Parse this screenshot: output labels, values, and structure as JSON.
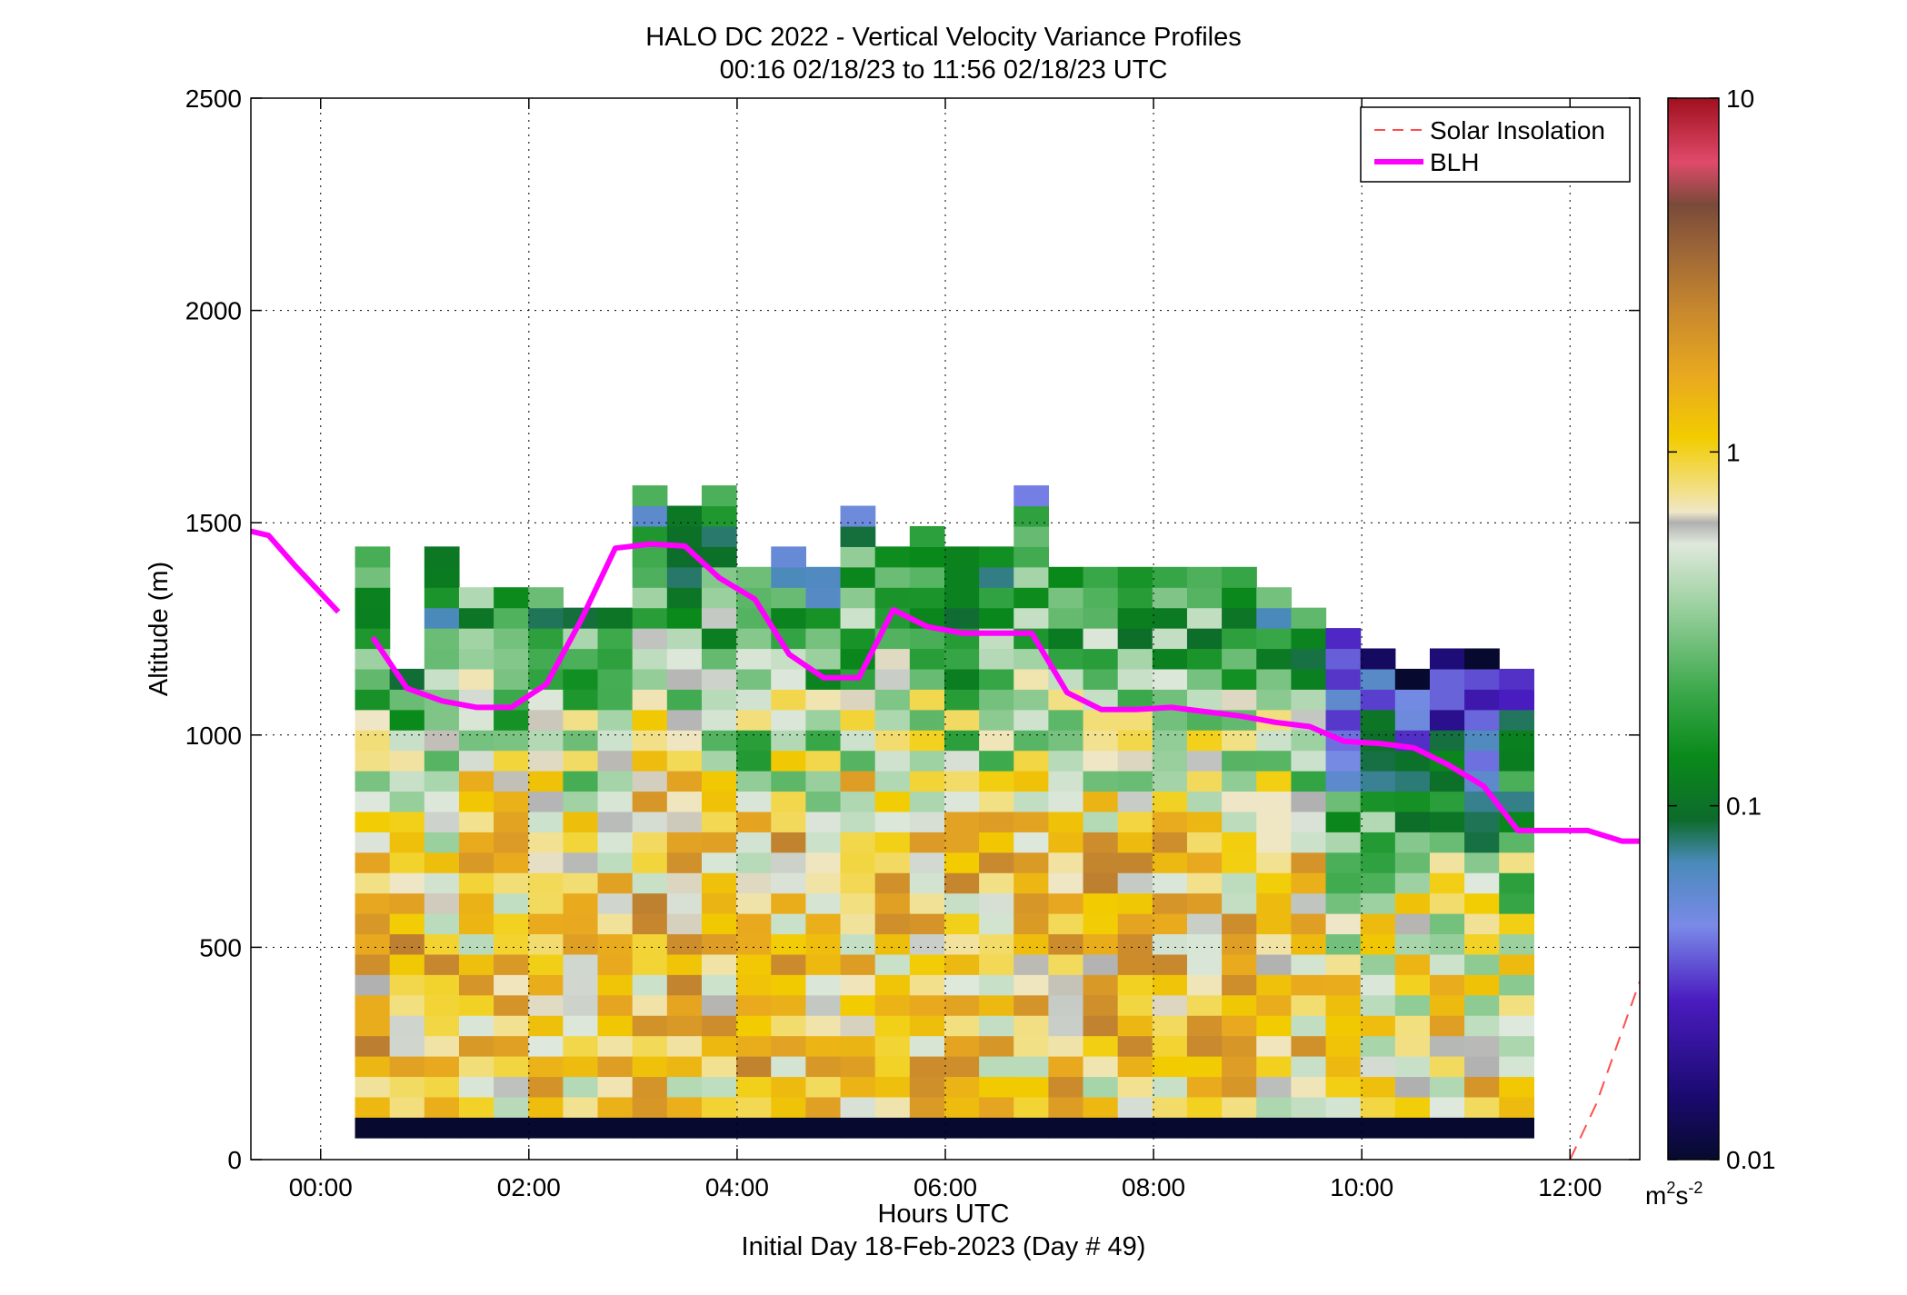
{
  "chart_data": {
    "type": "heatmap",
    "title": "HALO DC 2022 - Vertical Velocity Variance Profiles",
    "subtitle": "00:16 02/18/23 to 11:56 02/18/23  UTC",
    "xlabel": "Hours UTC",
    "xlabel2": "Initial Day 18-Feb-2023 (Day # 49)",
    "ylabel": "Altitude (m)",
    "xlim": [
      -0.67,
      12.67
    ],
    "ylim": [
      0,
      2500
    ],
    "x_ticks": [
      0,
      2,
      4,
      6,
      8,
      10,
      12
    ],
    "x_tick_labels": [
      "00:00",
      "02:00",
      "04:00",
      "06:00",
      "08:00",
      "10:00",
      "12:00"
    ],
    "y_ticks": [
      0,
      500,
      1000,
      1500,
      2000,
      2500
    ],
    "y_tick_labels": [
      "0",
      "500",
      "1000",
      "1500",
      "2000",
      "2500"
    ],
    "grid": true,
    "legend_position": "top-right",
    "legend": [
      {
        "name": "Solar Insolation",
        "color": "#ff4d4d",
        "style": "dashed"
      },
      {
        "name": "BLH",
        "color": "#ff00ff",
        "style": "solid"
      }
    ],
    "colorbar": {
      "scale": "log",
      "range": [
        0.01,
        10
      ],
      "tick_values": [
        0.01,
        0.1,
        1,
        10
      ],
      "tick_labels": [
        "0.01",
        "0.1",
        "1",
        "10"
      ],
      "unit_base": "m",
      "unit_exp1": "2",
      "unit_mid": "s",
      "unit_exp2": "-2"
    },
    "heatmap": {
      "t_start": 0.33,
      "t_step": 0.333,
      "z_bottom": 100,
      "z_step": 48,
      "profile_tops_m": [
        1440,
        1150,
        1440,
        1340,
        1340,
        1340,
        1300,
        1300,
        1580,
        1540,
        1580,
        1390,
        1440,
        1390,
        1530,
        1440,
        1480,
        1400,
        1440,
        1580,
        1390,
        1390,
        1390,
        1390,
        1390,
        1390,
        1340,
        1300,
        1250,
        1200,
        1150,
        1200,
        1200,
        1150
      ],
      "profile_peak_m": [
        380,
        500,
        300,
        700,
        500,
        450,
        400,
        450,
        500,
        450,
        450,
        350,
        500,
        450,
        450,
        500,
        500,
        450,
        400,
        450,
        500,
        500,
        450,
        450,
        500,
        500,
        450,
        400,
        350,
        350,
        250,
        200,
        200,
        200
      ],
      "surface_value": 0.01,
      "note_values": "variance in m2 s-2"
    },
    "series": [
      {
        "name": "BLH",
        "x": [
          -0.67,
          -0.5,
          -0.25,
          0.17,
          null,
          0.5,
          0.83,
          1.17,
          1.5,
          1.83,
          2.17,
          2.5,
          2.83,
          3.17,
          3.5,
          3.83,
          4.17,
          4.5,
          4.83,
          5.17,
          5.5,
          5.83,
          6.17,
          6.5,
          6.83,
          7.17,
          7.5,
          7.83,
          8.17,
          8.5,
          8.83,
          9.17,
          9.5,
          9.83,
          10.17,
          10.5,
          10.83,
          11.17,
          11.5,
          11.83,
          12.17,
          12.5,
          12.67
        ],
        "y": [
          1480,
          1470,
          1400,
          1290,
          null,
          1230,
          1110,
          1080,
          1065,
          1065,
          1120,
          1270,
          1440,
          1450,
          1445,
          1370,
          1320,
          1190,
          1135,
          1135,
          1295,
          1255,
          1240,
          1240,
          1240,
          1100,
          1060,
          1060,
          1065,
          1055,
          1045,
          1030,
          1020,
          985,
          980,
          970,
          930,
          880,
          775,
          775,
          775,
          750,
          750
        ]
      },
      {
        "name": "Solar Insolation",
        "x": [
          12.0,
          12.25,
          12.67
        ],
        "y": [
          0,
          130,
          420
        ]
      }
    ]
  }
}
